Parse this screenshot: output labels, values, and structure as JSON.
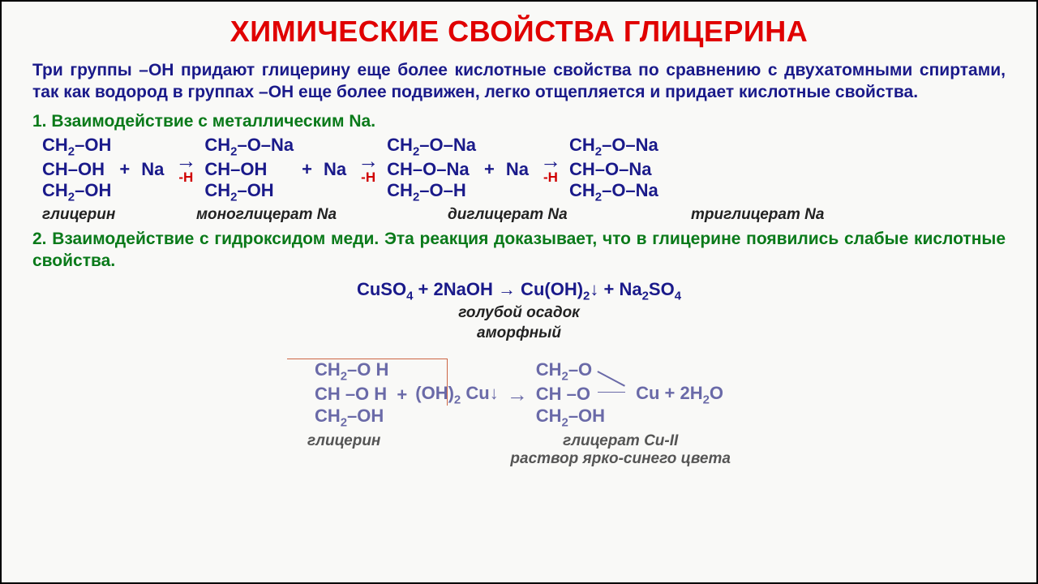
{
  "title": "ХИМИЧЕСКИЕ СВОЙСТВА ГЛИЦЕРИНА",
  "intro": "Три группы –ОН придают глицерину еще более кислотные свойства по сравнению с двухатомными спиртами, так как водород в группах –ОН еще более подвижен, легко отщепляется и придает кислотные свойства.",
  "sec1": "1. Взаимодействие с металлическим Na.",
  "mols": {
    "m1": {
      "l1": "CH₂–OH",
      "l2": "CH–OH",
      "l3": "CH₂–OH"
    },
    "m2": {
      "l1": "CH₂–O–Na",
      "l2": "CH–OH",
      "l3": "CH₂–OH"
    },
    "m3": {
      "l1": "CH₂–O–Na",
      "l2": "CH–O–Na",
      "l3": "CH₂–O–H"
    },
    "m4": {
      "l1": "CH₂–O–Na",
      "l2": "CH–O–Na",
      "l3": "CH₂–O–Na"
    }
  },
  "reagent": "Na",
  "plus": "+",
  "arrow": "→",
  "minusH": "-H",
  "labels1": {
    "a": "глицерин",
    "b": "моноглицерат Na",
    "c": "диглицерат Na",
    "d": "триглицерат Na"
  },
  "sec2": "2. Взаимодействие с гидроксидом меди. Эта реакция доказывает, что в глицерине появились слабые кислотные свойства.",
  "eq2": "CuSO₄ + 2NaOH → Cu(OH)₂↓ + Na₂SO₄",
  "eq2cap1": "голубой осадок",
  "eq2cap2": "аморфный",
  "rxn3": {
    "left": {
      "l1": "CH₂–O H",
      "l2": "CH –O H",
      "l3": "CH₂–OH"
    },
    "plus": "+",
    "reagent": "(OH)₂ Cu↓",
    "arrow": "→",
    "right": {
      "l1": "CH₂–O",
      "l2": "CH –O",
      "l3": "CH₂–OH"
    },
    "cu": "Cu + 2H₂O"
  },
  "labels3": {
    "a": "глицерин",
    "b1": "глицерат Cu-II",
    "b2": "раствор ярко-синего цвета"
  },
  "colors": {
    "title": "#e00000",
    "body_blue": "#1a1a8a",
    "green": "#0a7a1a",
    "minusH": "#d00000",
    "faded": "#6a6aa8",
    "label_dark": "#222222",
    "label_grey": "#555555",
    "bg": "#f9f9f7",
    "redbox": "#cc6644"
  },
  "fontsizes": {
    "title": 36,
    "body": 21,
    "formula": 22,
    "label": 19,
    "minusH": 17
  }
}
